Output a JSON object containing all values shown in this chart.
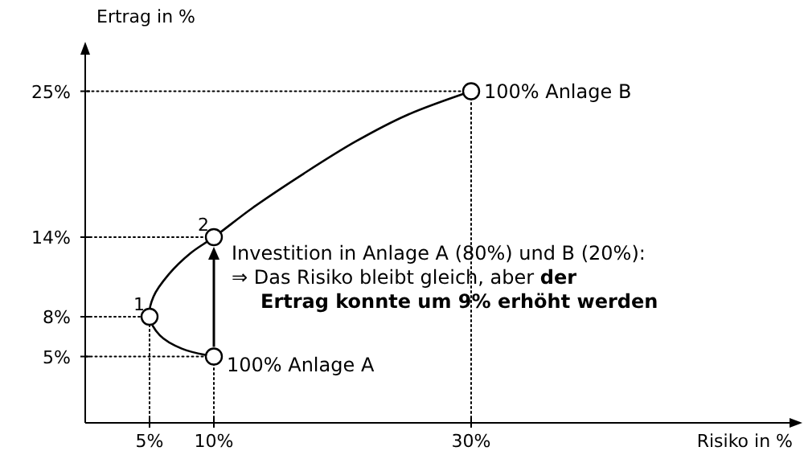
{
  "chart_data": {
    "type": "line",
    "xlabel": "Risiko in %",
    "ylabel": "Ertrag in %",
    "xlim": [
      0,
      55
    ],
    "ylim": [
      0,
      28
    ],
    "xticks": [
      {
        "value": 5,
        "label": "5%"
      },
      {
        "value": 10,
        "label": "10%"
      },
      {
        "value": 30,
        "label": "30%"
      }
    ],
    "yticks": [
      {
        "value": 5,
        "label": "5%"
      },
      {
        "value": 8,
        "label": "8%"
      },
      {
        "value": 14,
        "label": "14%"
      },
      {
        "value": 25,
        "label": "25%"
      }
    ],
    "grid": false,
    "series": [
      {
        "color": "#000000",
        "line_style": "solid",
        "marker": "none",
        "x": [
          10,
          7.5,
          5.8,
          5,
          5.3,
          6.5,
          8.2,
          10,
          13,
          17,
          21,
          25,
          30
        ],
        "values": [
          5,
          5.6,
          6.6,
          8,
          9.5,
          11.2,
          12.8,
          14,
          16.2,
          18.8,
          21.2,
          23.2,
          25
        ]
      },
      {
        "type": "scatter",
        "color": "#000000",
        "marker": "circle",
        "x": [
          10,
          5,
          10,
          30
        ],
        "values": [
          5,
          8,
          14,
          25
        ]
      },
      {
        "color": "#000000",
        "line_style": "dotted",
        "marker": "none",
        "x": [
          5,
          5,
          0
        ],
        "values": [
          0,
          8,
          8
        ]
      },
      {
        "color": "#000000",
        "line_style": "dotted",
        "marker": "none",
        "x": [
          10,
          10,
          0
        ],
        "values": [
          0,
          5,
          5
        ]
      },
      {
        "color": "#000000",
        "line_style": "dotted",
        "marker": "none",
        "x": [
          0,
          10
        ],
        "values": [
          14,
          14
        ]
      },
      {
        "color": "#000000",
        "line_style": "dotted",
        "marker": "none",
        "x": [
          30,
          30,
          0
        ],
        "values": [
          0,
          25,
          25
        ]
      }
    ],
    "annotations": [
      {
        "text": "100% Anlage A",
        "x": 10,
        "y": 5
      },
      {
        "text": "100% Anlage B",
        "x": 30,
        "y": 25
      },
      {
        "text": "1",
        "x": 5,
        "y": 8
      },
      {
        "text": "2",
        "x": 10,
        "y": 14
      },
      {
        "text": "Investition in Anlage A (80%) und B (20%):",
        "x": 10,
        "y": 14
      },
      {
        "text": "⇒ Das Risiko bleibt gleich, aber",
        "x": 10,
        "y": 14
      },
      {
        "text": "der Ertrag konnte um 9% erhöht werden",
        "x": 10,
        "y": 14
      }
    ]
  }
}
